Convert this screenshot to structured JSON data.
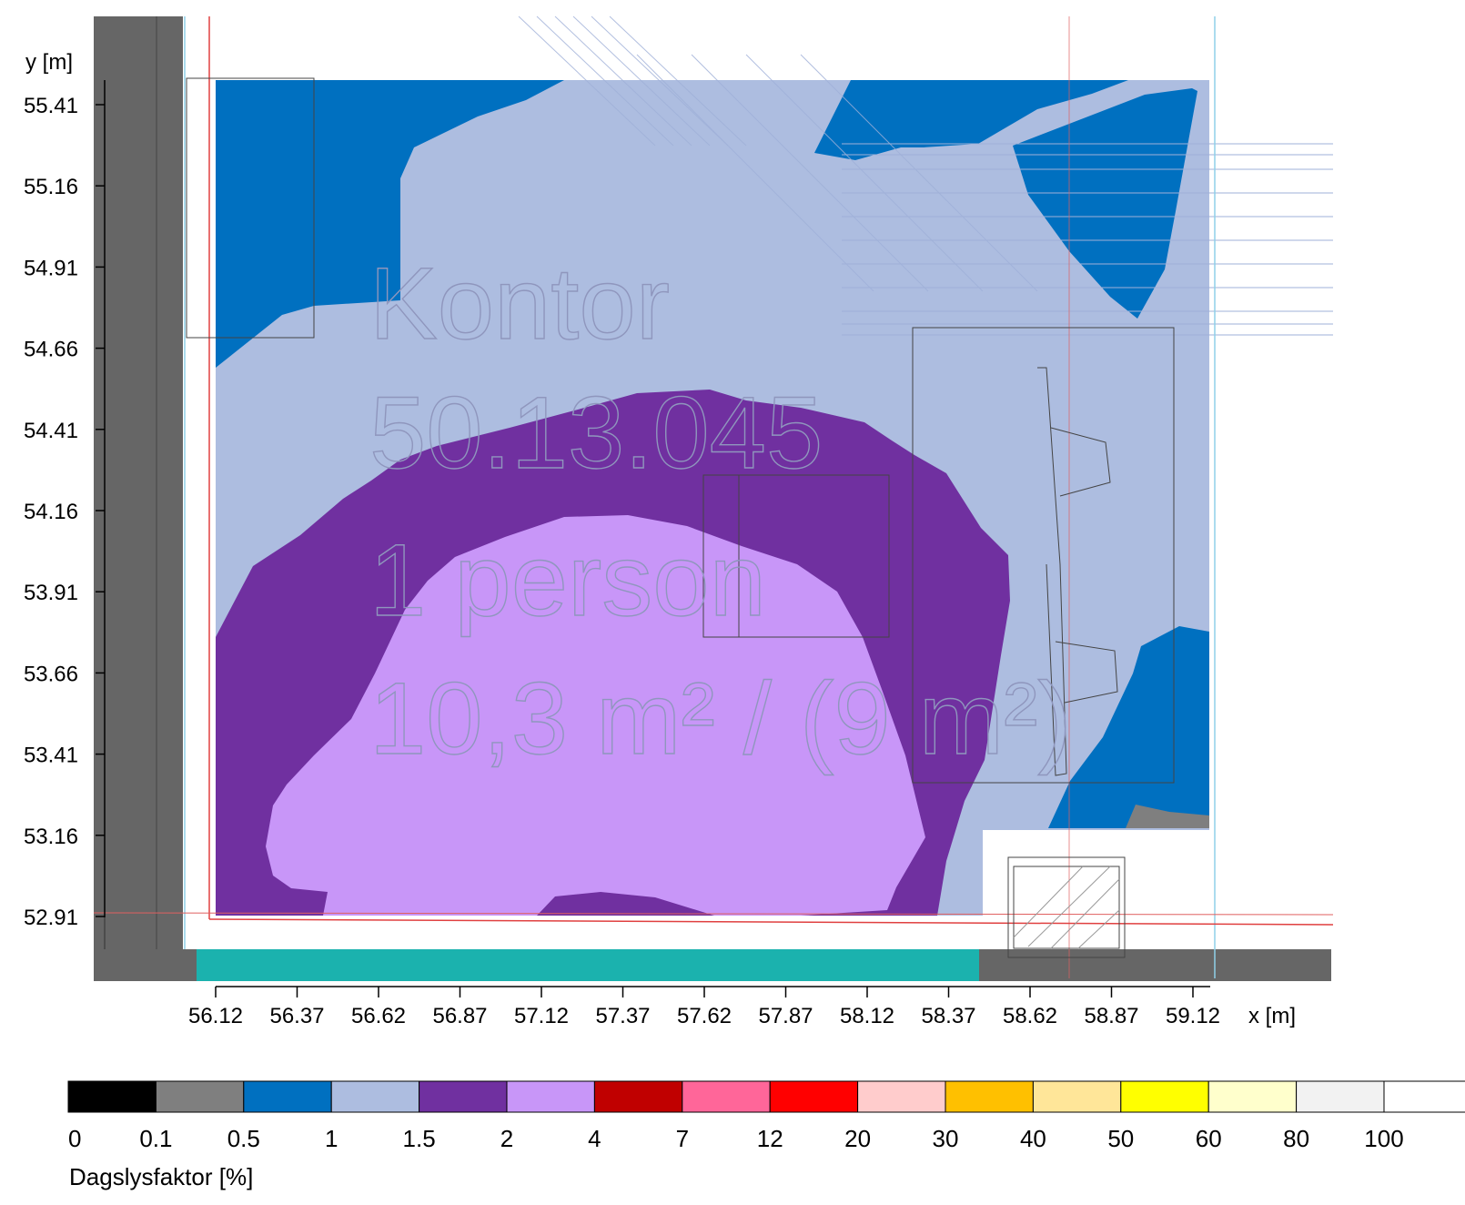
{
  "axes": {
    "y_title": "y [m]",
    "x_title": "x [m]",
    "y_ticks": [
      "55.41",
      "55.16",
      "54.91",
      "54.66",
      "54.41",
      "54.16",
      "53.91",
      "53.66",
      "53.41",
      "53.16",
      "52.91"
    ],
    "x_ticks": [
      "56.12",
      "56.37",
      "56.62",
      "56.87",
      "57.12",
      "57.37",
      "57.62",
      "57.87",
      "58.12",
      "58.37",
      "58.62",
      "58.87",
      "59.12"
    ]
  },
  "room": {
    "line1": "Kontor",
    "line2": "50.13.045",
    "line3": "1 person",
    "line4": "10,3 m² / (9 m²)"
  },
  "zones": {
    "band_05_1": "#0070c0",
    "band_1_15": "#adbde0",
    "band_15_2": "#7030a0",
    "band_2_4": "#c896f8",
    "band_01_05": "#7f7f7f",
    "wall": "#666666",
    "glazing": "#1bb2ae"
  },
  "legend": {
    "title": "Dagslysfaktor [%]",
    "bins": [
      {
        "color": "#000000"
      },
      {
        "color": "#7f7f7f"
      },
      {
        "color": "#0070c0"
      },
      {
        "color": "#adbde0"
      },
      {
        "color": "#7030a0"
      },
      {
        "color": "#c896f8"
      },
      {
        "color": "#c00000"
      },
      {
        "color": "#ff6699"
      },
      {
        "color": "#ff0000"
      },
      {
        "color": "#ffcccc"
      },
      {
        "color": "#ffc000"
      },
      {
        "color": "#ffe699"
      },
      {
        "color": "#ffff00"
      },
      {
        "color": "#ffffcc"
      },
      {
        "color": "#f2f2f2"
      },
      {
        "color": "#ffffff"
      }
    ],
    "labels": [
      "0",
      "0.1",
      "0.5",
      "1",
      "1.5",
      "2",
      "4",
      "7",
      "12",
      "20",
      "30",
      "40",
      "50",
      "60",
      "80",
      "100"
    ]
  }
}
